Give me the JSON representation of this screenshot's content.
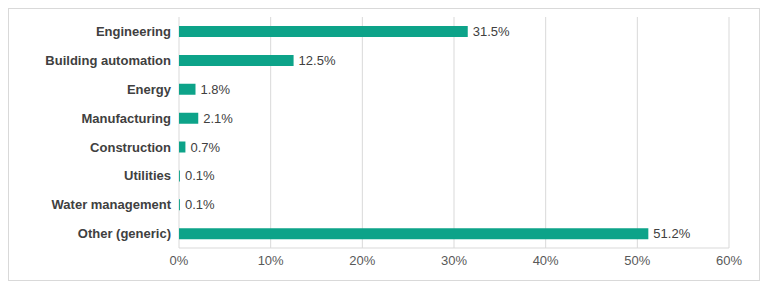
{
  "chart_data": {
    "type": "bar",
    "orientation": "horizontal",
    "categories": [
      "Engineering",
      "Building automation",
      "Energy",
      "Manufacturing",
      "Construction",
      "Utilities",
      "Water management",
      "Other (generic)"
    ],
    "values": [
      31.5,
      12.5,
      1.8,
      2.1,
      0.7,
      0.1,
      0.1,
      51.2
    ],
    "value_labels": [
      "31.5%",
      "12.5%",
      "1.8%",
      "2.1%",
      "0.7%",
      "0.1%",
      "0.1%",
      "51.2%"
    ],
    "data_labels": true,
    "color": "#0da389",
    "xlim": [
      0,
      60
    ],
    "xticks": [
      {
        "value": 0,
        "label": "0%"
      },
      {
        "value": 10,
        "label": "10%"
      },
      {
        "value": 20,
        "label": "20%"
      },
      {
        "value": 30,
        "label": "30%"
      },
      {
        "value": 40,
        "label": "40%"
      },
      {
        "value": 50,
        "label": "50%"
      },
      {
        "value": 60,
        "label": "60%"
      }
    ],
    "grid": true
  }
}
